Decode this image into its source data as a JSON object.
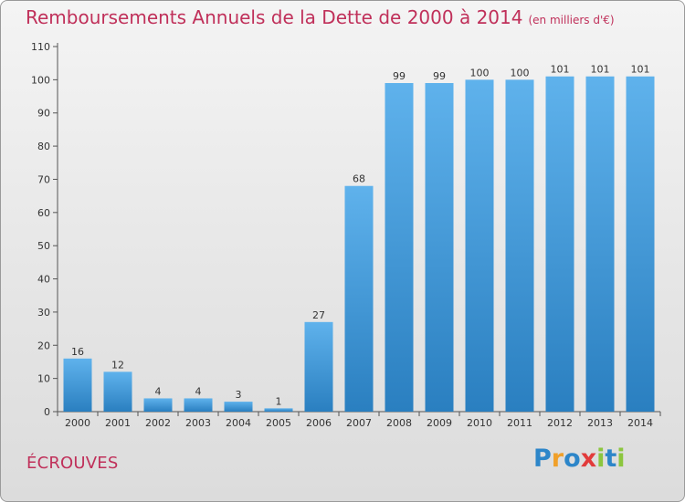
{
  "chart_data": {
    "type": "bar",
    "title": "Remboursements Annuels de la Dette de 2000 à 2014",
    "unit": "(en milliers d'€)",
    "categories": [
      "2000",
      "2001",
      "2002",
      "2003",
      "2004",
      "2005",
      "2006",
      "2007",
      "2008",
      "2009",
      "2010",
      "2011",
      "2012",
      "2013",
      "2014"
    ],
    "values": [
      16,
      12,
      4,
      4,
      3,
      1,
      27,
      68,
      99,
      99,
      100,
      100,
      101,
      101,
      101
    ],
    "value_labels": [
      "16",
      "12",
      "4",
      "4",
      "3",
      "1",
      "27",
      "68",
      "99",
      "99",
      "100",
      "100",
      "101",
      "101",
      "101"
    ],
    "ylim": [
      0,
      110
    ],
    "yticks": [
      0,
      10,
      20,
      30,
      40,
      50,
      60,
      70,
      80,
      90,
      100,
      110
    ],
    "xlabel": "",
    "ylabel": "",
    "grid": false,
    "bar_color": "#3e95d8"
  },
  "commune": "ÉCROUVES",
  "logo": {
    "letters": [
      "P",
      "r",
      "o",
      "x",
      "i",
      "t",
      "i"
    ],
    "colors": [
      "#2d86c9",
      "#f0a02a",
      "#2d86c9",
      "#e23b3b",
      "#8cc63f",
      "#2d86c9",
      "#8cc63f"
    ]
  }
}
